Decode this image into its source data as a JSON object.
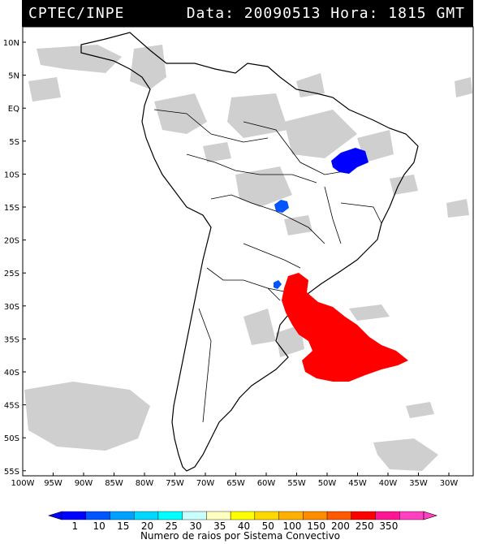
{
  "header": {
    "source": "CPTEC/INPE",
    "datetime": "Data: 20090513 Hora: 1815 GMT"
  },
  "map": {
    "lat_labels": [
      "10N",
      "5N",
      "EQ",
      "5S",
      "10S",
      "15S",
      "20S",
      "25S",
      "30S",
      "35S",
      "40S",
      "45S",
      "50S",
      "55S"
    ],
    "lon_labels": [
      "100W",
      "95W",
      "90W",
      "85W",
      "80W",
      "75W",
      "70W",
      "65W",
      "60W",
      "55W",
      "50W",
      "45W",
      "40W",
      "35W",
      "30W"
    ]
  },
  "legend": {
    "values": [
      "1",
      "10",
      "15",
      "20",
      "25",
      "30",
      "35",
      "40",
      "50",
      "100",
      "150",
      "200",
      "250",
      "350"
    ],
    "colors": [
      "#0000ff",
      "#0055ff",
      "#00a0ff",
      "#00d8ff",
      "#00ffff",
      "#c8ffff",
      "#ffffc0",
      "#ffff00",
      "#ffd800",
      "#ffb000",
      "#ff8c00",
      "#ff5a00",
      "#ff0000",
      "#ff1493",
      "#ff40c0"
    ],
    "title": "Numero de raios por Sistema Convectivo"
  },
  "systems": [
    {
      "name": "northeast-brazil",
      "color": "#0000ff"
    },
    {
      "name": "central-brazil",
      "color": "#0055ff"
    },
    {
      "name": "paraguay-border",
      "color": "#0055ff"
    },
    {
      "name": "southern-brazil-uruguay-atlantic",
      "color": "#ff0000"
    }
  ]
}
